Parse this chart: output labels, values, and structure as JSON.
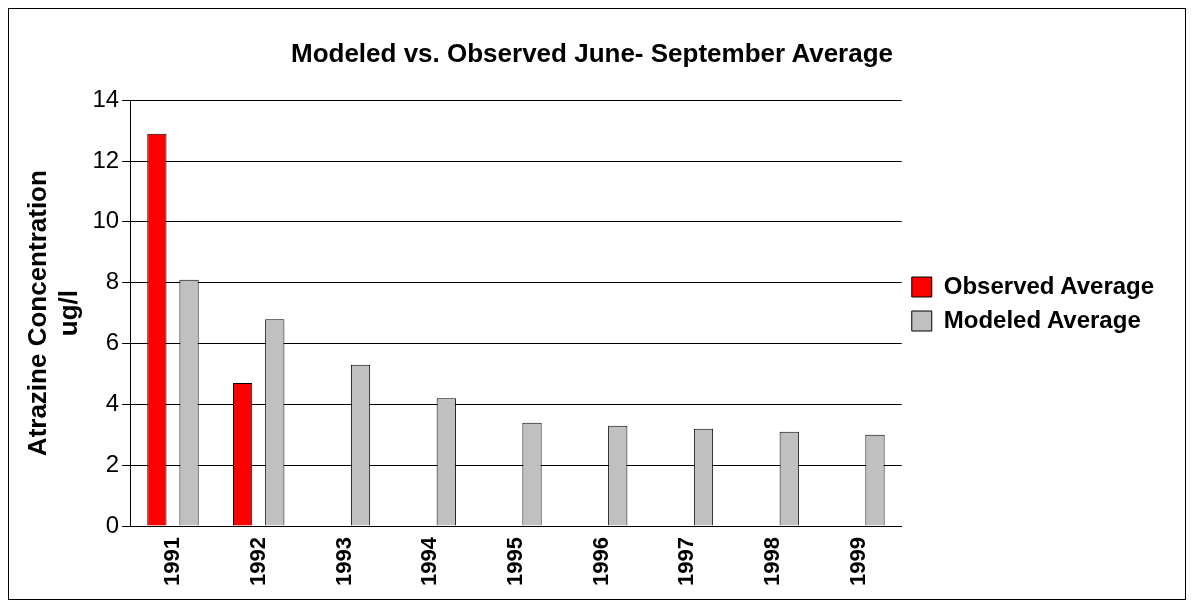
{
  "chart_data": {
    "type": "bar",
    "title": "Modeled vs. Observed June- September Average",
    "ylabel": "Atrazine Concentration\nug/l",
    "categories": [
      "1991",
      "1992",
      "1993",
      "1994",
      "1995",
      "1996",
      "1997",
      "1998",
      "1999"
    ],
    "series": [
      {
        "name": "Observed Average",
        "color": "#ff0000",
        "values": [
          12.9,
          4.7,
          null,
          null,
          null,
          null,
          null,
          null,
          null
        ]
      },
      {
        "name": "Modeled Average",
        "color": "#c0c0c0",
        "values": [
          8.1,
          6.8,
          5.3,
          4.2,
          3.4,
          3.3,
          3.2,
          3.1,
          3.0
        ]
      }
    ],
    "ylim": [
      0,
      14
    ],
    "yticks": [
      0,
      2,
      4,
      6,
      8,
      10,
      12,
      14
    ],
    "grid": "y",
    "legend": "right"
  }
}
